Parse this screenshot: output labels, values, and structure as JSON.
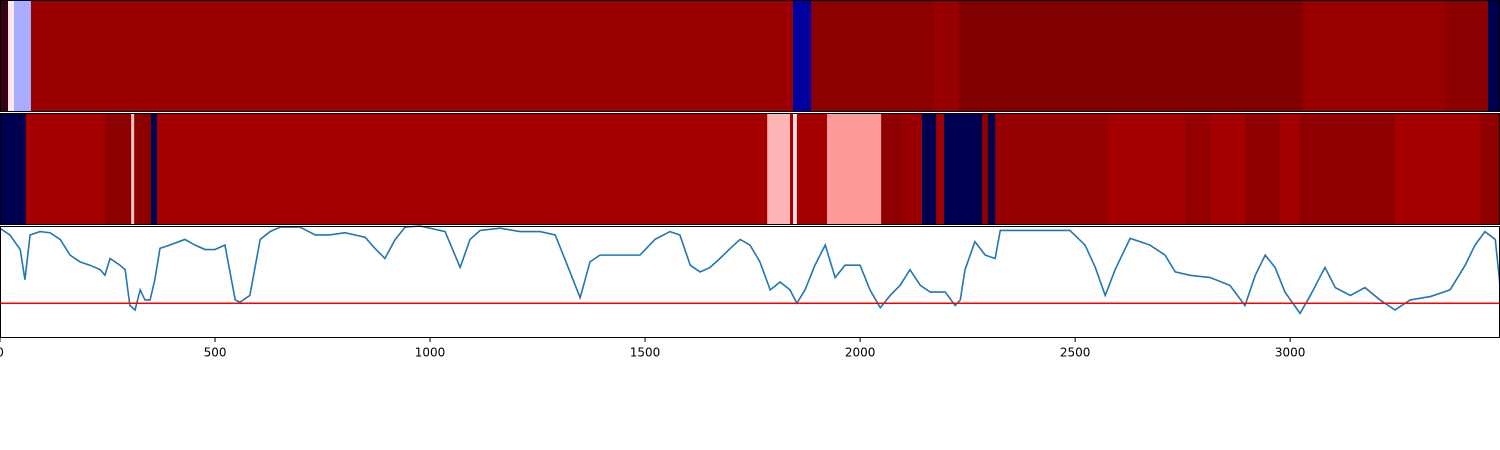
{
  "chart_data": [
    {
      "type": "strip",
      "xlim": [
        0,
        3488
      ],
      "bins": [
        0,
        18.6,
        32.6,
        72,
        1844,
        1886,
        2172,
        2230,
        3030,
        3360,
        3460,
        3488
      ],
      "colors": [
        "#3a0010",
        "#ffe8ec",
        "#a9adff",
        "#9a0000",
        "#0000a0",
        "#8c0000",
        "#960000",
        "#800000",
        "#980000",
        "#8a0000",
        "#000050"
      ]
    },
    {
      "type": "strip",
      "xlim": [
        0,
        3488
      ],
      "bins": [
        0,
        60,
        244,
        305,
        312,
        351,
        365,
        1784,
        1837,
        1844,
        1853,
        1923,
        2049,
        2093,
        2144,
        2177,
        2195,
        2284,
        2298,
        2314,
        2577,
        2756,
        2816,
        2895,
        2977,
        3023,
        3244,
        3442,
        3488
      ],
      "colors": [
        "#000050",
        "#a50000",
        "#8c0000",
        "#ffc4c4",
        "#8c0000",
        "#000050",
        "#a50000",
        "#ffb5b5",
        "#a50000",
        "#ffe0e0",
        "#a50000",
        "#ff9a9a",
        "#8c0000",
        "#990000",
        "#000050",
        "#a00000",
        "#000050",
        "#8c0000",
        "#000050",
        "#960000",
        "#a50000",
        "#950000",
        "#a50000",
        "#900000",
        "#a50000",
        "#900000",
        "#a50000",
        "#900000"
      ]
    },
    {
      "type": "line",
      "color": "#1f77b4",
      "xlim": [
        0,
        3488
      ],
      "ylim": [
        0,
        1
      ],
      "xticks": [
        0,
        500,
        1000,
        1500,
        2000,
        2500,
        3000
      ],
      "hline": {
        "value": 0.31,
        "color": "#ff0000"
      },
      "x": [
        0,
        23,
        47,
        58,
        70,
        93,
        116,
        140,
        163,
        186,
        209,
        233,
        244,
        256,
        279,
        291,
        302,
        314,
        326,
        337,
        349,
        360,
        372,
        395,
        430,
        453,
        477,
        500,
        523,
        547,
        558,
        581,
        605,
        628,
        651,
        698,
        733,
        767,
        802,
        849,
        872,
        895,
        919,
        942,
        977,
        1035,
        1070,
        1093,
        1116,
        1163,
        1209,
        1256,
        1291,
        1314,
        1349,
        1372,
        1395,
        1442,
        1488,
        1523,
        1558,
        1581,
        1605,
        1628,
        1651,
        1674,
        1698,
        1721,
        1744,
        1767,
        1791,
        1814,
        1837,
        1853,
        1872,
        1895,
        1919,
        1942,
        1965,
        2000,
        2023,
        2047,
        2070,
        2093,
        2116,
        2140,
        2163,
        2198,
        2221,
        2233,
        2244,
        2267,
        2291,
        2314,
        2326,
        2395,
        2488,
        2523,
        2547,
        2570,
        2593,
        2628,
        2674,
        2709,
        2733,
        2767,
        2814,
        2860,
        2895,
        2919,
        2942,
        2965,
        2988,
        3023,
        3047,
        3081,
        3105,
        3140,
        3174,
        3209,
        3244,
        3279,
        3326,
        3372,
        3407,
        3430,
        3453,
        3477,
        3488
      ],
      "values": [
        0.98,
        0.92,
        0.79,
        0.52,
        0.92,
        0.95,
        0.94,
        0.88,
        0.74,
        0.68,
        0.65,
        0.61,
        0.56,
        0.71,
        0.65,
        0.61,
        0.29,
        0.25,
        0.43,
        0.34,
        0.34,
        0.52,
        0.8,
        0.83,
        0.88,
        0.83,
        0.79,
        0.79,
        0.83,
        0.34,
        0.32,
        0.38,
        0.88,
        0.95,
        0.99,
        0.99,
        0.92,
        0.92,
        0.94,
        0.9,
        0.8,
        0.71,
        0.88,
        0.99,
        1.0,
        0.95,
        0.63,
        0.88,
        0.96,
        0.98,
        0.95,
        0.95,
        0.92,
        0.7,
        0.36,
        0.68,
        0.74,
        0.74,
        0.74,
        0.88,
        0.95,
        0.92,
        0.65,
        0.59,
        0.63,
        0.71,
        0.8,
        0.88,
        0.83,
        0.68,
        0.43,
        0.5,
        0.43,
        0.31,
        0.43,
        0.65,
        0.83,
        0.54,
        0.65,
        0.65,
        0.43,
        0.27,
        0.38,
        0.47,
        0.61,
        0.47,
        0.41,
        0.41,
        0.29,
        0.34,
        0.61,
        0.86,
        0.74,
        0.71,
        0.96,
        0.96,
        0.96,
        0.83,
        0.63,
        0.38,
        0.61,
        0.89,
        0.83,
        0.74,
        0.59,
        0.56,
        0.54,
        0.47,
        0.29,
        0.56,
        0.74,
        0.63,
        0.41,
        0.22,
        0.38,
        0.63,
        0.45,
        0.38,
        0.45,
        0.34,
        0.25,
        0.34,
        0.37,
        0.43,
        0.65,
        0.83,
        0.95,
        0.88,
        0.47
      ]
    }
  ]
}
